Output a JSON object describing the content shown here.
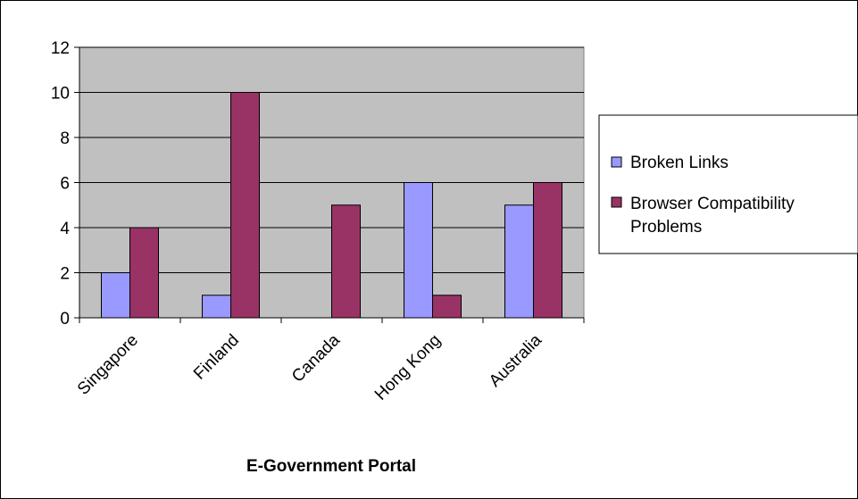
{
  "chart_data": {
    "type": "bar",
    "title": "",
    "xlabel": "E-Government Portal",
    "ylabel": "",
    "categories": [
      "Singapore",
      "Finland",
      "Canada",
      "Hong Kong",
      "Australia"
    ],
    "series": [
      {
        "name": "Broken Links",
        "values": [
          2,
          1,
          0,
          6,
          5
        ],
        "color": "#9999ff"
      },
      {
        "name": "Browser Compatibility Problems",
        "values": [
          4,
          10,
          5,
          1,
          6
        ],
        "color": "#993366"
      }
    ],
    "ylim": [
      0,
      12
    ],
    "yticks": [
      0,
      2,
      4,
      6,
      8,
      10,
      12
    ],
    "grid": true,
    "plot_background": "#c0c0c0",
    "legend_position": "right"
  }
}
